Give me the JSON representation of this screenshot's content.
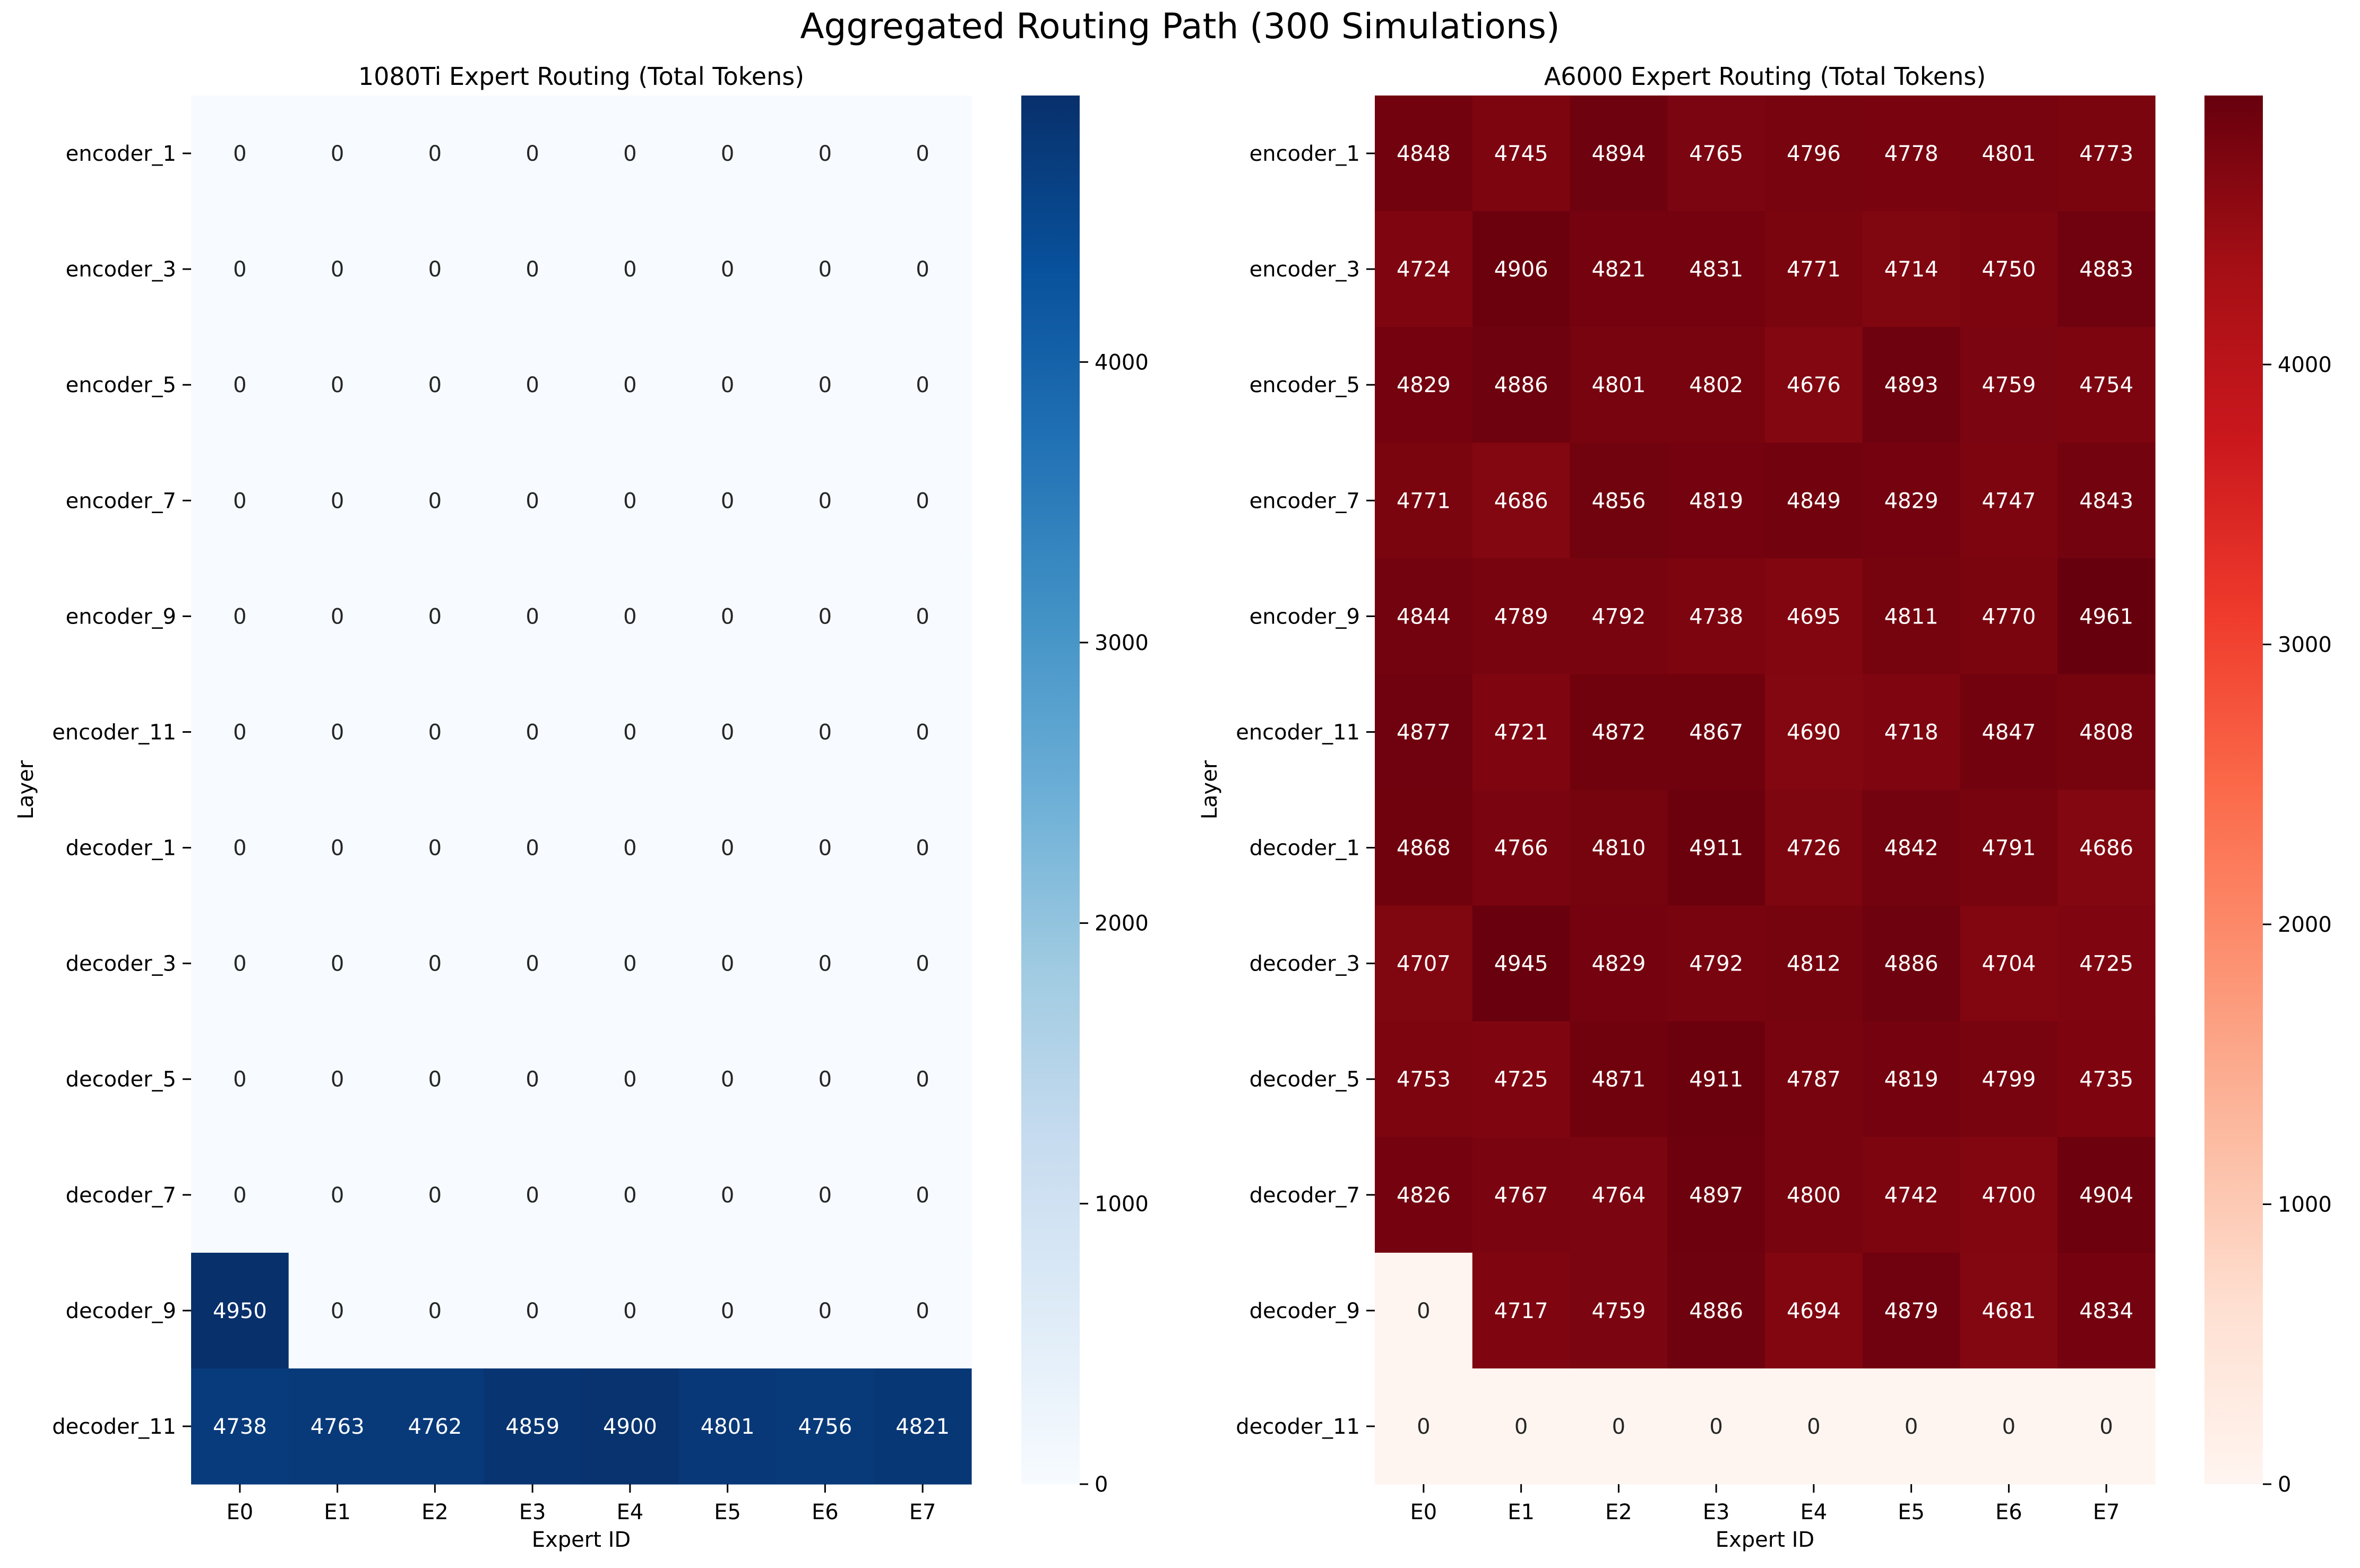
{
  "title": "Aggregated Routing Path (300 Simulations)",
  "chart_data": [
    {
      "type": "heatmap",
      "title": "1080Ti Expert Routing (Total Tokens)",
      "xlabel": "Expert ID",
      "ylabel": "Layer",
      "x": [
        "E0",
        "E1",
        "E2",
        "E3",
        "E4",
        "E5",
        "E6",
        "E7"
      ],
      "y": [
        "encoder_1",
        "encoder_3",
        "encoder_5",
        "encoder_7",
        "encoder_9",
        "encoder_11",
        "decoder_1",
        "decoder_3",
        "decoder_5",
        "decoder_7",
        "decoder_9",
        "decoder_11"
      ],
      "values": [
        [
          0,
          0,
          0,
          0,
          0,
          0,
          0,
          0
        ],
        [
          0,
          0,
          0,
          0,
          0,
          0,
          0,
          0
        ],
        [
          0,
          0,
          0,
          0,
          0,
          0,
          0,
          0
        ],
        [
          0,
          0,
          0,
          0,
          0,
          0,
          0,
          0
        ],
        [
          0,
          0,
          0,
          0,
          0,
          0,
          0,
          0
        ],
        [
          0,
          0,
          0,
          0,
          0,
          0,
          0,
          0
        ],
        [
          0,
          0,
          0,
          0,
          0,
          0,
          0,
          0
        ],
        [
          0,
          0,
          0,
          0,
          0,
          0,
          0,
          0
        ],
        [
          0,
          0,
          0,
          0,
          0,
          0,
          0,
          0
        ],
        [
          0,
          0,
          0,
          0,
          0,
          0,
          0,
          0
        ],
        [
          4950,
          0,
          0,
          0,
          0,
          0,
          0,
          0
        ],
        [
          4738,
          4763,
          4762,
          4859,
          4900,
          4801,
          4756,
          4821
        ]
      ],
      "colormap": "Blues",
      "colorbar": {
        "min": 0,
        "max": 4950,
        "ticks": [
          0,
          1000,
          2000,
          3000,
          4000
        ]
      }
    },
    {
      "type": "heatmap",
      "title": "A6000 Expert Routing (Total Tokens)",
      "xlabel": "Expert ID",
      "ylabel": "Layer",
      "x": [
        "E0",
        "E1",
        "E2",
        "E3",
        "E4",
        "E5",
        "E6",
        "E7"
      ],
      "y": [
        "encoder_1",
        "encoder_3",
        "encoder_5",
        "encoder_7",
        "encoder_9",
        "encoder_11",
        "decoder_1",
        "decoder_3",
        "decoder_5",
        "decoder_7",
        "decoder_9",
        "decoder_11"
      ],
      "values": [
        [
          4848,
          4745,
          4894,
          4765,
          4796,
          4778,
          4801,
          4773
        ],
        [
          4724,
          4906,
          4821,
          4831,
          4771,
          4714,
          4750,
          4883
        ],
        [
          4829,
          4886,
          4801,
          4802,
          4676,
          4893,
          4759,
          4754
        ],
        [
          4771,
          4686,
          4856,
          4819,
          4849,
          4829,
          4747,
          4843
        ],
        [
          4844,
          4789,
          4792,
          4738,
          4695,
          4811,
          4770,
          4961
        ],
        [
          4877,
          4721,
          4872,
          4867,
          4690,
          4718,
          4847,
          4808
        ],
        [
          4868,
          4766,
          4810,
          4911,
          4726,
          4842,
          4791,
          4686
        ],
        [
          4707,
          4945,
          4829,
          4792,
          4812,
          4886,
          4704,
          4725
        ],
        [
          4753,
          4725,
          4871,
          4911,
          4787,
          4819,
          4799,
          4735
        ],
        [
          4826,
          4767,
          4764,
          4897,
          4800,
          4742,
          4700,
          4904
        ],
        [
          0,
          4717,
          4759,
          4886,
          4694,
          4879,
          4681,
          4834
        ],
        [
          0,
          0,
          0,
          0,
          0,
          0,
          0,
          0
        ]
      ],
      "colormap": "Reds",
      "colorbar": {
        "min": 0,
        "max": 4961,
        "ticks": [
          0,
          1000,
          2000,
          3000,
          4000
        ]
      }
    }
  ]
}
